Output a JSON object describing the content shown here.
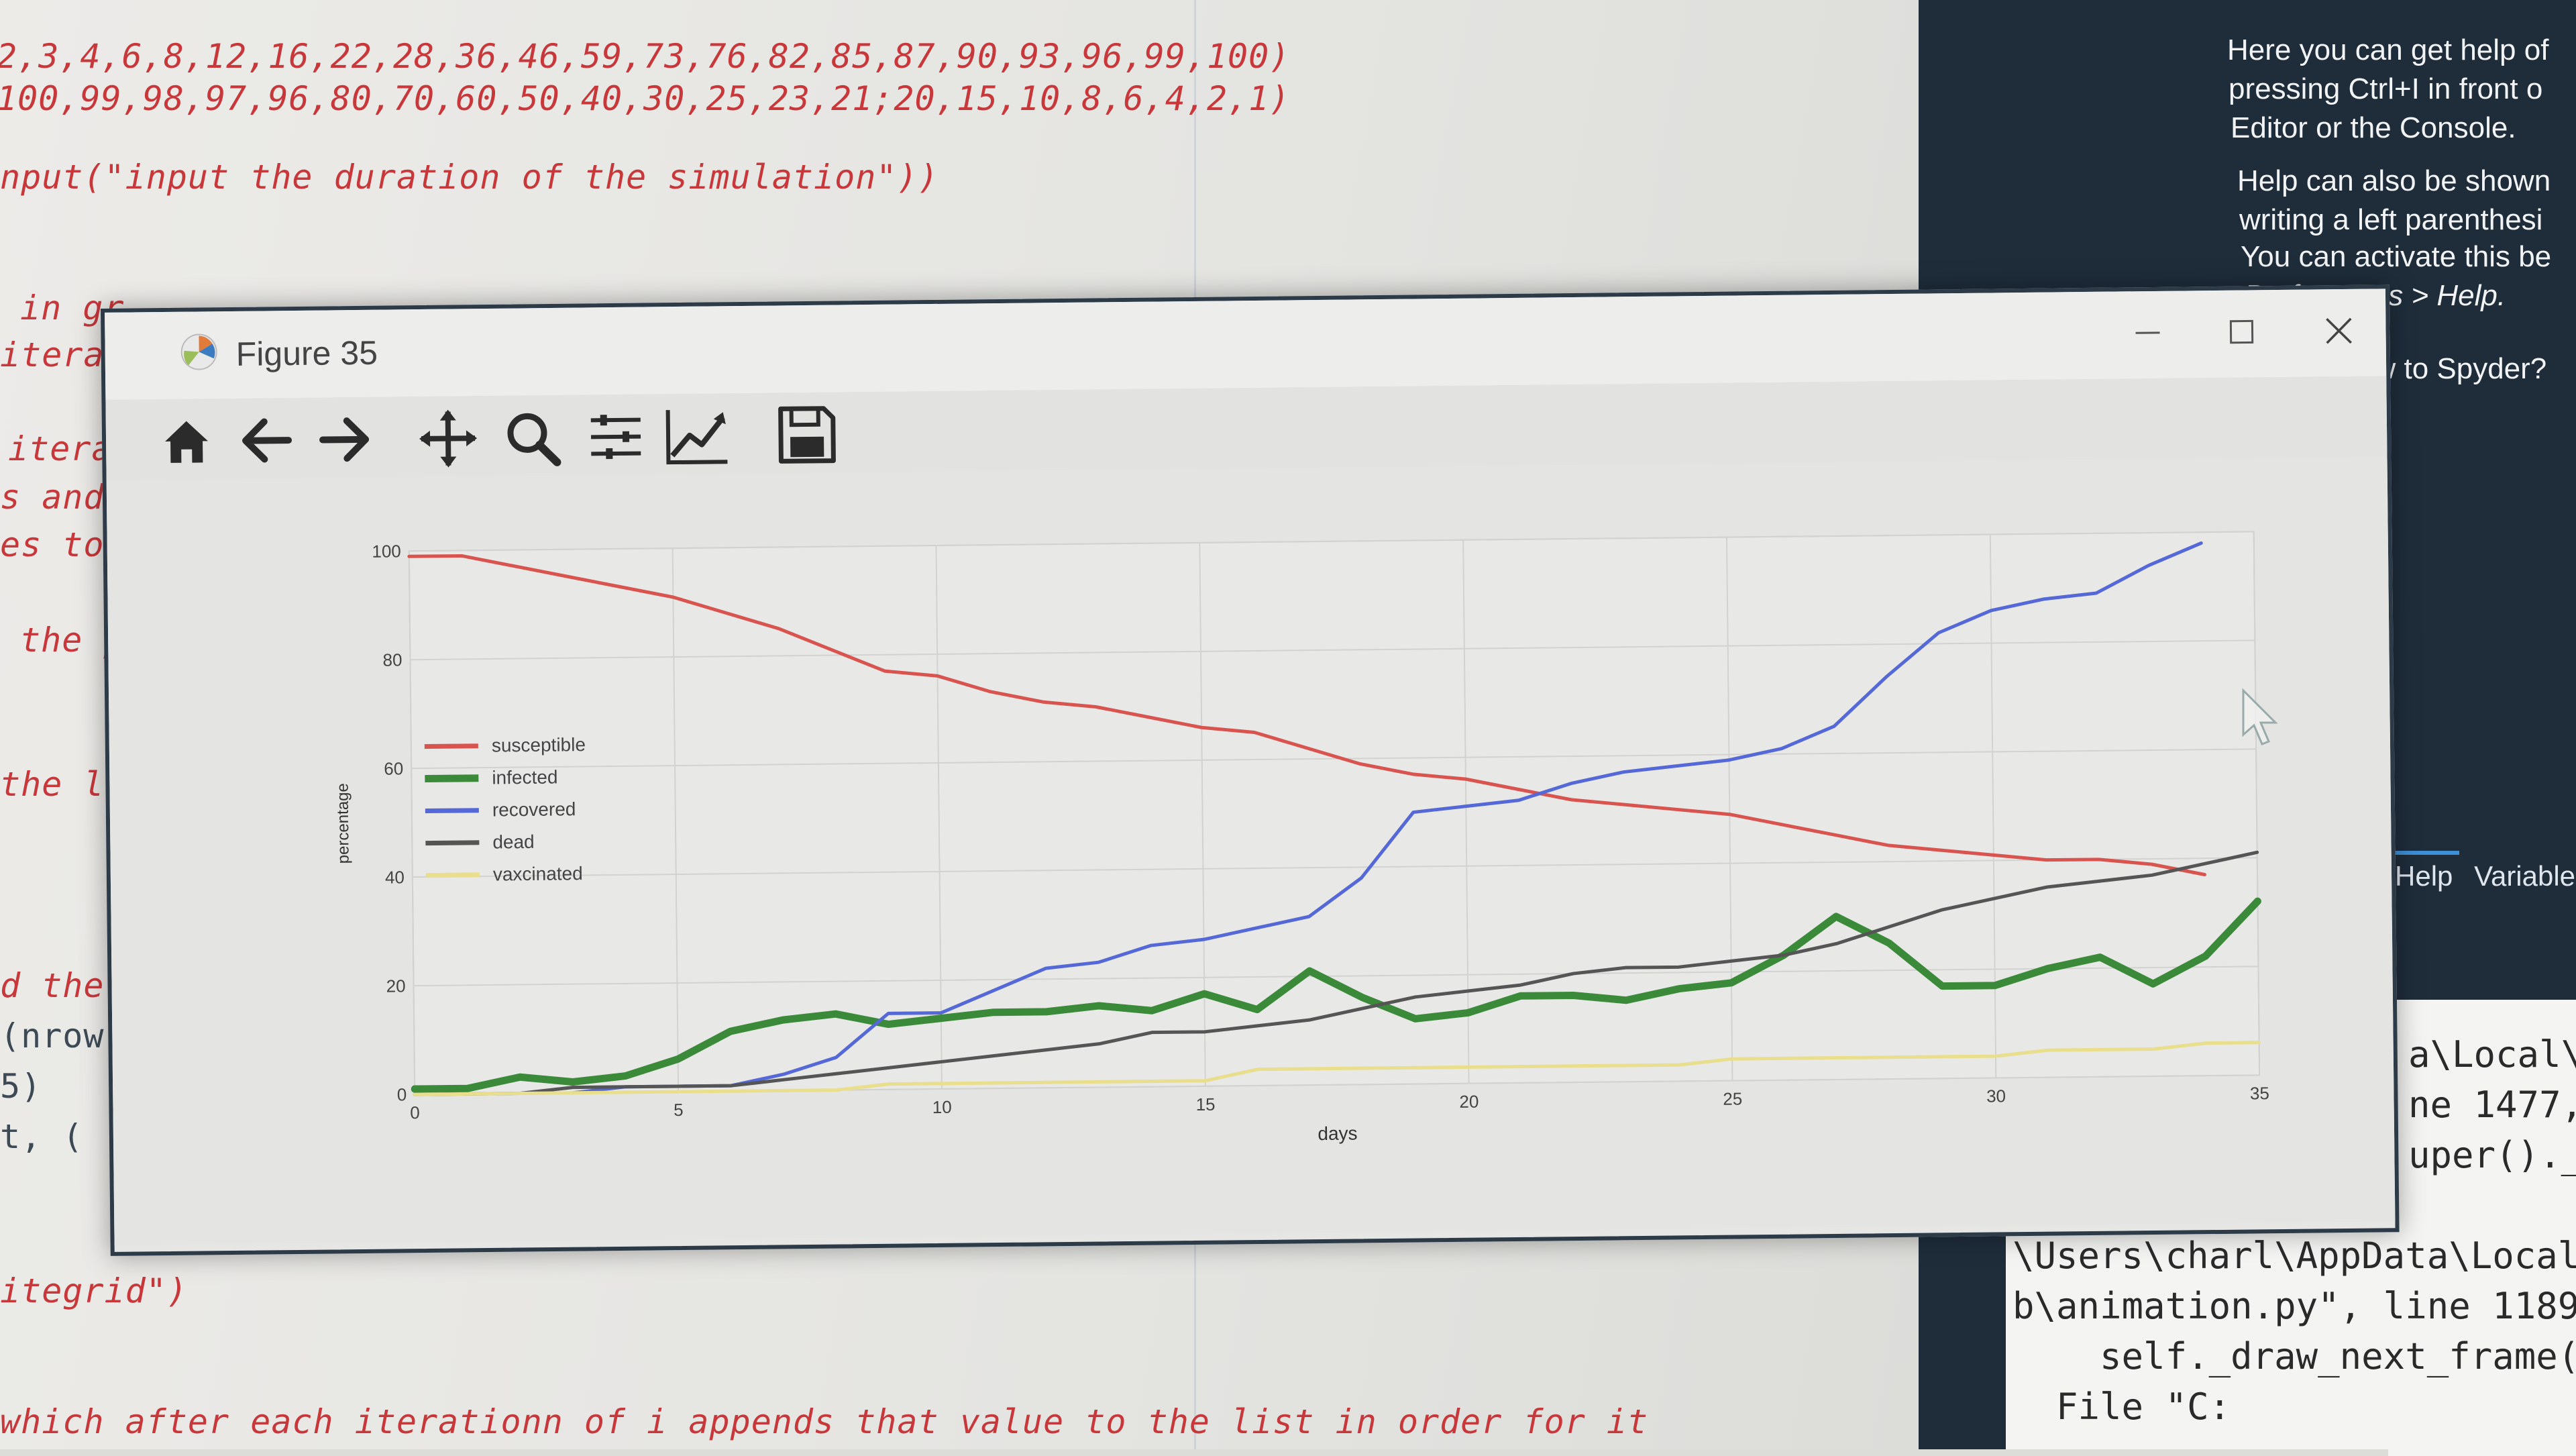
{
  "editor": {
    "lines": [
      {
        "text": "2,3,4,6,8,12,16,22,28,36,46,59,73,76,82,85,87,90,93,96,99,100)"
      },
      {
        "text": "100,99,98,97,96,80,70,60,50,40,30,25,23,21;20,15,10,8,6,4,2,1)"
      },
      {
        "text": "nput(\"input the duration of the simulation\"))"
      },
      {
        "text": "in gr"
      },
      {
        "text": "iterat"
      },
      {
        "text": "itera"
      },
      {
        "text": "s and"
      },
      {
        "text": "es to"
      },
      {
        "text": "the p"
      },
      {
        "text": "the l"
      },
      {
        "text": "d the"
      },
      {
        "text": "(nrow"
      },
      {
        "text": "5)"
      },
      {
        "text": "t, ("
      },
      {
        "text": "itegrid\")"
      },
      {
        "text": "which after each iterationn of i appends that value to the list in order for it"
      }
    ]
  },
  "help_panel": {
    "lines": [
      "Here you can get help of",
      "pressing Ctrl+I in front o",
      "Editor or the Console.",
      "Help can also be shown",
      "writing a left parenthesi",
      "You can activate this be",
      "Preferences > Help."
    ],
    "new_to_spyder": "ew to Spyder?",
    "tabs": [
      "Help",
      "Variable"
    ]
  },
  "console": {
    "lines": [
      "a\\Local\\",
      "ne 1477,",
      "uper()._"
    ],
    "lower_lines": [
      "\\Users\\charl\\AppData\\Local",
      "b\\animation.py\", line 1189",
      "    self._draw_next_frame(",
      "  File \"C:"
    ]
  },
  "figure_window": {
    "title": "Figure 35",
    "toolbar": [
      "home-icon",
      "back-arrow-icon",
      "forward-arrow-icon",
      "pan-icon",
      "zoom-icon",
      "configure-subplots-icon",
      "edit-axis-icon",
      "save-icon"
    ]
  },
  "chart_data": {
    "type": "line",
    "title": "",
    "xlabel": "days",
    "ylabel": "percentage",
    "xlim": [
      0,
      35
    ],
    "ylim": [
      0,
      100
    ],
    "xticks": [
      0,
      5,
      10,
      15,
      20,
      25,
      30,
      35
    ],
    "yticks": [
      0,
      20,
      40,
      60,
      80,
      100
    ],
    "grid": true,
    "legend_position": "center-left",
    "x": [
      0,
      1,
      2,
      3,
      4,
      5,
      6,
      7,
      8,
      9,
      10,
      11,
      12,
      13,
      14,
      15,
      16,
      17,
      18,
      19,
      20,
      21,
      22,
      23,
      24,
      25,
      26,
      27,
      28,
      29,
      30,
      31,
      32,
      33,
      34,
      35
    ],
    "series": [
      {
        "name": "susceptible",
        "color": "#d9534f",
        "values": [
          99,
          99,
          97,
          95,
          93,
          91,
          88,
          85,
          81,
          77,
          76,
          73,
          71,
          70,
          68,
          66,
          65,
          62,
          59,
          57,
          56,
          54,
          52,
          51,
          50,
          49,
          47,
          45,
          43,
          42,
          41,
          40,
          40,
          39,
          37,
          null
        ]
      },
      {
        "name": "infected",
        "color": "#3a8a3a",
        "values": [
          1,
          1,
          3,
          2,
          3,
          6,
          11,
          13,
          14,
          12,
          13,
          14,
          14,
          15,
          14,
          17,
          14,
          21,
          16,
          12,
          13,
          16,
          16,
          15,
          17,
          18,
          23,
          30,
          25,
          17,
          17,
          20,
          22,
          17,
          22,
          32
        ]
      },
      {
        "name": "recovered",
        "color": "#5568d8",
        "values": [
          null,
          null,
          null,
          0,
          1,
          1,
          1,
          3,
          6,
          14,
          14,
          18,
          22,
          23,
          26,
          27,
          29,
          31,
          38,
          50,
          51,
          52,
          55,
          57,
          58,
          59,
          61,
          65,
          74,
          82,
          86,
          88,
          89,
          94,
          98,
          null
        ]
      },
      {
        "name": "dead",
        "color": "#555555",
        "values": [
          0,
          0,
          0,
          1,
          1,
          1,
          1,
          2,
          3,
          4,
          5,
          6,
          7,
          8,
          10,
          10,
          11,
          12,
          14,
          16,
          17,
          18,
          20,
          21,
          21,
          22,
          23,
          25,
          28,
          31,
          33,
          35,
          36,
          37,
          39,
          41
        ]
      },
      {
        "name": "vaxcinated",
        "color": "#e8de8c",
        "values": [
          0,
          0,
          0,
          0,
          0,
          0,
          0,
          0,
          0,
          1,
          1,
          1,
          1,
          1,
          1,
          1,
          3,
          3,
          3,
          3,
          3,
          3,
          3,
          3,
          3,
          4,
          4,
          4,
          4,
          4,
          4,
          5,
          5,
          5,
          6,
          6
        ]
      }
    ]
  }
}
